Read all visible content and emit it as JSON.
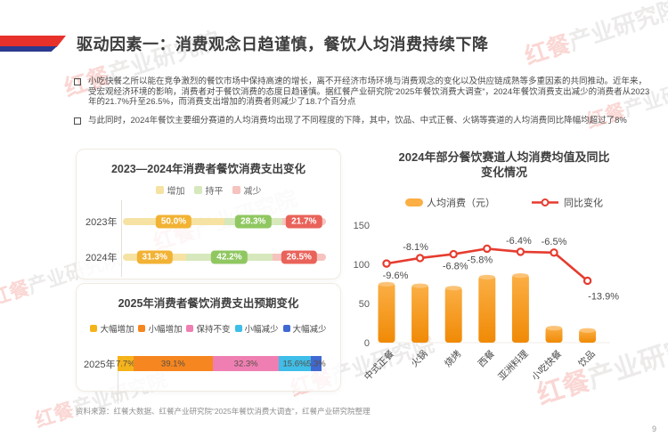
{
  "watermark": {
    "brand": "红餐",
    "suffix": "产业研究院"
  },
  "header": {
    "title": "驱动因素一：消费观念日趋谨慎，餐饮人均消费持续下降",
    "ribbon_red": "#E8312A",
    "ribbon_blue": "#2B3A8F"
  },
  "bullets": [
    {
      "text": "小吃快餐之所以能在竞争激烈的餐饮市场中保持高速的增长，离不开经济市场环境与消费观念的变化以及供应链成熟等多重因素的共同推动。近年来，受宏观经济环境的影响，消费者对于餐饮消费的态度日趋谨慎。据红餐产业研究院“2025年餐饮消费大调查”，2024年餐饮消费支出减少的消费者从2023年的21.7%升至26.5%，而消费支出增加的消费者则减少了18.7个百分点"
    },
    {
      "text": "与此同时，2024年餐饮主要细分赛道的人均消费均出现了不同程度的下降，其中，饮品、中式正餐、火锅等赛道的人均消费同比降幅均超过了8%"
    }
  ],
  "chart_data": [
    {
      "type": "bar",
      "subtype": "stacked-horizontal",
      "title": "2023—2024年消费者餐饮消费支出变化",
      "legend": [
        "增加",
        "持平",
        "减少"
      ],
      "legend_position": "top-center",
      "colors_light": [
        "#F6E2A2",
        "#D6E8BC",
        "#F6C3BE"
      ],
      "colors_dark": [
        "#F2B233",
        "#90C761",
        "#E9635A"
      ],
      "categories": [
        "2023年",
        "2024年"
      ],
      "series": [
        {
          "name": "增加",
          "values": [
            50.0,
            31.3
          ]
        },
        {
          "name": "持平",
          "values": [
            28.3,
            42.2
          ]
        },
        {
          "name": "减少",
          "values": [
            21.7,
            26.5
          ]
        }
      ],
      "value_suffix": "%"
    },
    {
      "type": "bar",
      "subtype": "stacked-horizontal",
      "title": "2025年消费者餐饮消费支出预期变化",
      "legend": [
        "大幅增加",
        "小幅增加",
        "保持不变",
        "小幅减少",
        "大幅减少"
      ],
      "legend_position": "top-center",
      "colors": [
        "#F5B31B",
        "#F6861F",
        "#EF7FB3",
        "#3EBEE8",
        "#4169D1"
      ],
      "categories": [
        "2025年"
      ],
      "values": [
        7.7,
        39.1,
        32.3,
        15.6,
        5.3
      ],
      "value_suffix": "%"
    },
    {
      "type": "combo-bar-line",
      "title_line1": "2024年部分餐饮赛道人均消费均值及同比",
      "title_line2": "变化情况",
      "legend": [
        {
          "label": "人均消费（元）",
          "marker": "bar"
        },
        {
          "label": "同比变化",
          "marker": "line"
        }
      ],
      "categories": [
        "中式正餐",
        "火锅",
        "烧烤",
        "西餐",
        "亚洲料理",
        "小吃快餐",
        "饮品"
      ],
      "bar_values": [
        76,
        74,
        71,
        85,
        87,
        20,
        17
      ],
      "line_labels": [
        "-9.6%",
        "-8.1%",
        "-6.8%",
        "-5.8%",
        "-6.4%",
        "-6.5%",
        "-13.9%"
      ],
      "line_axis_values": [
        101,
        108,
        113,
        120,
        116,
        115,
        79
      ],
      "label_dx": [
        10,
        -5,
        2,
        -8,
        -2,
        0,
        18
      ],
      "label_dy": [
        17,
        -9,
        17,
        16,
        -9,
        -9,
        21
      ],
      "y_ticks": [
        0,
        50,
        100,
        150
      ],
      "ylim": [
        0,
        150
      ],
      "grid": false,
      "bar_color_top": "#FBAF45",
      "bar_color_bottom": "#F08A06",
      "bar_cap_color": "#FCC377",
      "line_color": "#E63C2F"
    }
  ],
  "footer": {
    "source": "资料来源：红餐大数据、红餐产业研究院“2025年餐饮消费大调查”，红餐产业研究院整理",
    "page_number": "9"
  }
}
